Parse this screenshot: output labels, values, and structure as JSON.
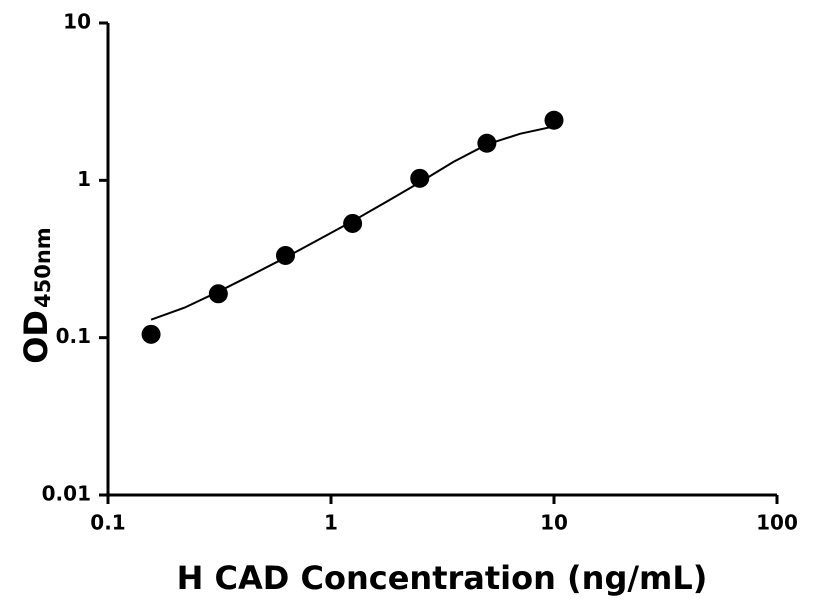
{
  "chart_data": {
    "type": "scatter",
    "color": "#000000",
    "log_x": true,
    "log_y": true,
    "x_title": "H CAD Concentration (ng/mL)",
    "y_title": "OD",
    "y_title_subscript": "450nm",
    "x": [
      0.156,
      0.3125,
      0.625,
      1.25,
      2.5,
      5,
      10
    ],
    "values": [
      0.105,
      0.19,
      0.333,
      0.532,
      1.03,
      1.72,
      2.41
    ],
    "fit": {
      "x": [
        0.156,
        0.22,
        0.3125,
        0.44,
        0.625,
        0.88,
        1.25,
        1.77,
        2.5,
        3.54,
        5,
        7.07,
        10
      ],
      "values": [
        0.13,
        0.155,
        0.196,
        0.25,
        0.323,
        0.42,
        0.55,
        0.73,
        0.97,
        1.31,
        1.69,
        1.98,
        2.2
      ]
    },
    "xlim": [
      0.1,
      100
    ],
    "xticks": [
      0.1,
      1,
      10,
      100
    ],
    "ylim": [
      0.01,
      10
    ],
    "yticks": [
      0.01,
      0.1,
      1,
      10
    ]
  }
}
